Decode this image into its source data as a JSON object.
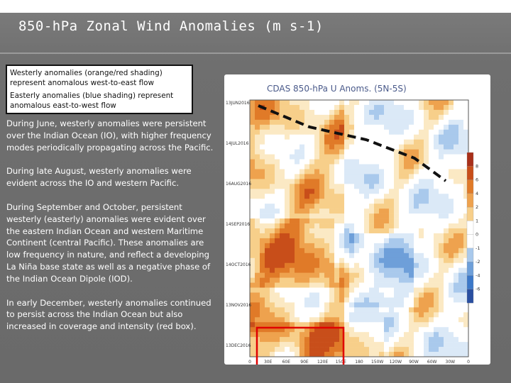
{
  "slide": {
    "title": "850-hPa Zonal Wind Anomalies (m s-1)",
    "legend": {
      "westerly": "Westerly anomalies (orange/red shading) represent anomalous west-to-east flow",
      "easterly": "Easterly anomalies (blue shading) represent anomalous east-to-west flow"
    },
    "bullets": [
      "During June, westerly anomalies were persistent over the Indian Ocean (IO), with higher frequency modes periodically propagating across the Pacific.",
      "During late August, westerly anomalies were evident across the IO and western Pacific.",
      "During September and October, persistent westerly (easterly) anomalies were evident over the eastern Indian Ocean and western Maritime Continent (central Pacific). These anomalies are low frequency in nature, and reflect a developing La Niña base state as well as a negative phase of the Indian Ocean Dipole (IOD).",
      "In early December, westerly anomalies continued to persist across the Indian Ocean but also increased in coverage and intensity (red box)."
    ]
  },
  "chart_data": {
    "type": "heatmap",
    "title": "CDAS 850-hPa U Anoms. (5N-5S)",
    "x_ticks": [
      "0",
      "30E",
      "60E",
      "90E",
      "120E",
      "150E",
      "180",
      "150W",
      "120W",
      "90W",
      "60W",
      "30W",
      "0"
    ],
    "y_ticks": [
      "13JUN2016",
      "14JUL2016",
      "16AUG2016",
      "14SEP2016",
      "14OCT2016",
      "13NOV2016",
      "13DEC2016"
    ],
    "colorbar_ticks": [
      "-6",
      "-4",
      "-2",
      "-1",
      "0",
      "1",
      "2",
      "4",
      "6",
      "8"
    ],
    "colors": {
      "westerly": "#e07a28",
      "easterly": "#3c78c8",
      "highlight_box": "#e00000",
      "dashed_line": "#111111"
    }
  }
}
